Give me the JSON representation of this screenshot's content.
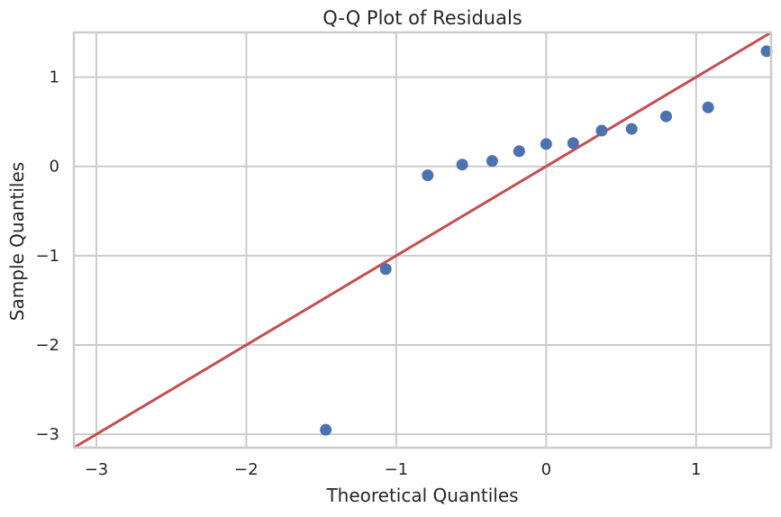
{
  "chart_data": {
    "type": "scatter",
    "title": "Q-Q Plot of Residuals",
    "xlabel": "Theoretical Quantiles",
    "ylabel": "Sample Quantiles",
    "xlim": [
      -3.15,
      1.5
    ],
    "ylim": [
      -3.15,
      1.5
    ],
    "grid": true,
    "x_ticks": [
      -3,
      -2,
      -1,
      0,
      1
    ],
    "y_ticks": [
      -3,
      -2,
      -1,
      0,
      1
    ],
    "x_tick_labels": [
      "−3",
      "−2",
      "−1",
      "0",
      "1"
    ],
    "y_tick_labels": [
      "−3",
      "−2",
      "−1",
      "0",
      "1"
    ],
    "series": [
      {
        "kind": "points",
        "color": "#4c72b0",
        "points": [
          {
            "x": -1.47,
            "y": -2.95
          },
          {
            "x": -1.07,
            "y": -1.15
          },
          {
            "x": -0.79,
            "y": -0.1
          },
          {
            "x": -0.56,
            "y": 0.02
          },
          {
            "x": -0.36,
            "y": 0.06
          },
          {
            "x": -0.18,
            "y": 0.17
          },
          {
            "x": 0.0,
            "y": 0.25
          },
          {
            "x": 0.18,
            "y": 0.26
          },
          {
            "x": 0.37,
            "y": 0.4
          },
          {
            "x": 0.57,
            "y": 0.42
          },
          {
            "x": 0.8,
            "y": 0.56
          },
          {
            "x": 1.08,
            "y": 0.66
          },
          {
            "x": 1.47,
            "y": 1.29
          }
        ]
      },
      {
        "kind": "reference-line",
        "color": "#c44e52",
        "from": {
          "x": -3.15,
          "y": -3.15
        },
        "to": {
          "x": 1.5,
          "y": 1.5
        }
      }
    ]
  }
}
